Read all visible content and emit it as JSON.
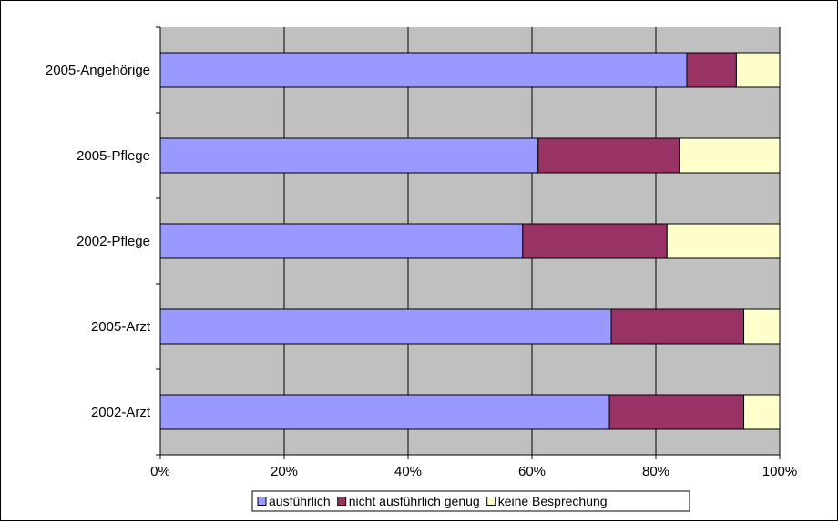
{
  "chart_data": {
    "type": "bar",
    "orientation": "horizontal",
    "stacked": "percent",
    "categories": [
      "2005-Angehörige",
      "2005-Pflege",
      "2002-Pflege",
      "2005-Arzt",
      "2002-Arzt"
    ],
    "series": [
      {
        "name": "ausführlich",
        "color": "#9999FF",
        "values": [
          85,
          61,
          58.5,
          72.8,
          72.5
        ]
      },
      {
        "name": "nicht ausführlich genug",
        "color": "#993366",
        "values": [
          8,
          22.8,
          23.3,
          21.4,
          21.7
        ]
      },
      {
        "name": "keine Besprechung",
        "color": "#FFFFCC",
        "values": [
          7,
          16.2,
          18.2,
          5.8,
          5.8
        ]
      }
    ],
    "x_ticks": [
      "0%",
      "20%",
      "40%",
      "60%",
      "80%",
      "100%"
    ],
    "xlim": [
      0,
      100
    ],
    "grid": true,
    "plot_background": "#C0C0C0",
    "legend_position": "bottom"
  }
}
